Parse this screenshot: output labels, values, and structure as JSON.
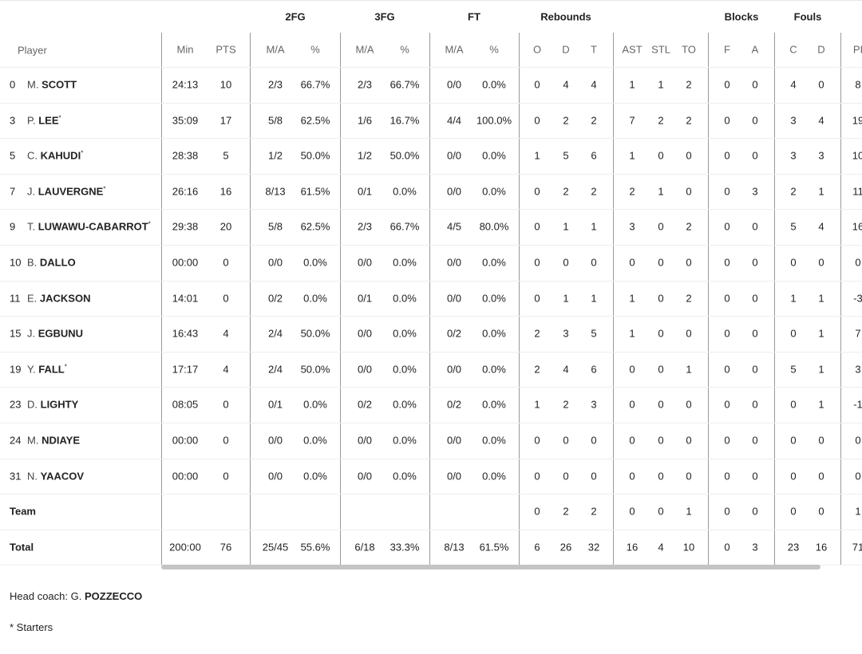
{
  "groups": [
    {
      "key": "2fg",
      "label": "2FG"
    },
    {
      "key": "3fg",
      "label": "3FG"
    },
    {
      "key": "ft",
      "label": "FT"
    },
    {
      "key": "reb",
      "label": "Rebounds"
    },
    {
      "key": "blk",
      "label": "Blocks"
    },
    {
      "key": "fouls",
      "label": "Fouls"
    }
  ],
  "columns": [
    "Min",
    "PTS",
    "M/A",
    "%",
    "M/A",
    "%",
    "M/A",
    "%",
    "O",
    "D",
    "T",
    "AST",
    "STL",
    "TO",
    "F",
    "A",
    "C",
    "D",
    "PI"
  ],
  "player_header": "Player",
  "rows": [
    {
      "num": "0",
      "initial": "M.",
      "name": "SCOTT",
      "starter": false,
      "stats": [
        "24:13",
        "10",
        "2/3",
        "66.7%",
        "2/3",
        "66.7%",
        "0/0",
        "0.0%",
        "0",
        "4",
        "4",
        "1",
        "1",
        "2",
        "0",
        "0",
        "4",
        "0",
        "8"
      ]
    },
    {
      "num": "3",
      "initial": "P.",
      "name": "LEE",
      "starter": true,
      "stats": [
        "35:09",
        "17",
        "5/8",
        "62.5%",
        "1/6",
        "16.7%",
        "4/4",
        "100.0%",
        "0",
        "2",
        "2",
        "7",
        "2",
        "2",
        "0",
        "0",
        "3",
        "4",
        "19"
      ]
    },
    {
      "num": "5",
      "initial": "C.",
      "name": "KAHUDI",
      "starter": true,
      "stats": [
        "28:38",
        "5",
        "1/2",
        "50.0%",
        "1/2",
        "50.0%",
        "0/0",
        "0.0%",
        "1",
        "5",
        "6",
        "1",
        "0",
        "0",
        "0",
        "0",
        "3",
        "3",
        "10"
      ]
    },
    {
      "num": "7",
      "initial": "J.",
      "name": "LAUVERGNE",
      "starter": true,
      "stats": [
        "26:16",
        "16",
        "8/13",
        "61.5%",
        "0/1",
        "0.0%",
        "0/0",
        "0.0%",
        "0",
        "2",
        "2",
        "2",
        "1",
        "0",
        "0",
        "3",
        "2",
        "1",
        "11"
      ]
    },
    {
      "num": "9",
      "initial": "T.",
      "name": "LUWAWU-CABARROT",
      "starter": true,
      "stats": [
        "29:38",
        "20",
        "5/8",
        "62.5%",
        "2/3",
        "66.7%",
        "4/5",
        "80.0%",
        "0",
        "1",
        "1",
        "3",
        "0",
        "2",
        "0",
        "0",
        "5",
        "4",
        "16"
      ]
    },
    {
      "num": "10",
      "initial": "B.",
      "name": "DALLO",
      "starter": false,
      "stats": [
        "00:00",
        "0",
        "0/0",
        "0.0%",
        "0/0",
        "0.0%",
        "0/0",
        "0.0%",
        "0",
        "0",
        "0",
        "0",
        "0",
        "0",
        "0",
        "0",
        "0",
        "0",
        "0"
      ]
    },
    {
      "num": "11",
      "initial": "E.",
      "name": "JACKSON",
      "starter": false,
      "stats": [
        "14:01",
        "0",
        "0/2",
        "0.0%",
        "0/1",
        "0.0%",
        "0/0",
        "0.0%",
        "0",
        "1",
        "1",
        "1",
        "0",
        "2",
        "0",
        "0",
        "1",
        "1",
        "-3"
      ]
    },
    {
      "num": "15",
      "initial": "J.",
      "name": "EGBUNU",
      "starter": false,
      "stats": [
        "16:43",
        "4",
        "2/4",
        "50.0%",
        "0/0",
        "0.0%",
        "0/2",
        "0.0%",
        "2",
        "3",
        "5",
        "1",
        "0",
        "0",
        "0",
        "0",
        "0",
        "1",
        "7"
      ]
    },
    {
      "num": "19",
      "initial": "Y.",
      "name": "FALL",
      "starter": true,
      "stats": [
        "17:17",
        "4",
        "2/4",
        "50.0%",
        "0/0",
        "0.0%",
        "0/0",
        "0.0%",
        "2",
        "4",
        "6",
        "0",
        "0",
        "1",
        "0",
        "0",
        "5",
        "1",
        "3"
      ]
    },
    {
      "num": "23",
      "initial": "D.",
      "name": "LIGHTY",
      "starter": false,
      "stats": [
        "08:05",
        "0",
        "0/1",
        "0.0%",
        "0/2",
        "0.0%",
        "0/2",
        "0.0%",
        "1",
        "2",
        "3",
        "0",
        "0",
        "0",
        "0",
        "0",
        "0",
        "1",
        "-1"
      ]
    },
    {
      "num": "24",
      "initial": "M.",
      "name": "NDIAYE",
      "starter": false,
      "stats": [
        "00:00",
        "0",
        "0/0",
        "0.0%",
        "0/0",
        "0.0%",
        "0/0",
        "0.0%",
        "0",
        "0",
        "0",
        "0",
        "0",
        "0",
        "0",
        "0",
        "0",
        "0",
        "0"
      ]
    },
    {
      "num": "31",
      "initial": "N.",
      "name": "YAACOV",
      "starter": false,
      "stats": [
        "00:00",
        "0",
        "0/0",
        "0.0%",
        "0/0",
        "0.0%",
        "0/0",
        "0.0%",
        "0",
        "0",
        "0",
        "0",
        "0",
        "0",
        "0",
        "0",
        "0",
        "0",
        "0"
      ]
    }
  ],
  "team": {
    "label": "Team",
    "stats": [
      "",
      "",
      "",
      "",
      "",
      "",
      "",
      "",
      "0",
      "2",
      "2",
      "0",
      "0",
      "1",
      "0",
      "0",
      "0",
      "0",
      "1"
    ]
  },
  "total": {
    "label": "Total",
    "stats": [
      "200:00",
      "76",
      "25/45",
      "55.6%",
      "6/18",
      "33.3%",
      "8/13",
      "61.5%",
      "6",
      "26",
      "32",
      "16",
      "4",
      "10",
      "0",
      "3",
      "23",
      "16",
      "71"
    ]
  },
  "head_coach": {
    "label": "Head coach:",
    "initial": "G.",
    "name": "POZZECCO"
  },
  "starters_note": "* Starters",
  "starter_mark": "*"
}
